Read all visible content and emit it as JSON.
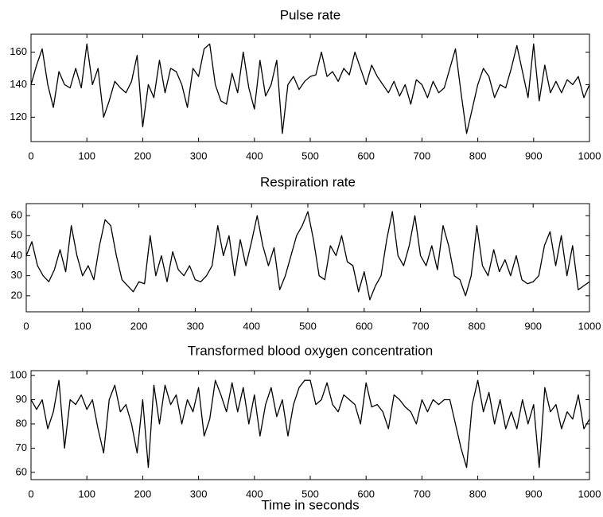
{
  "chart_data": [
    {
      "type": "line",
      "title": "Pulse rate",
      "color": "#000000",
      "x": [
        0,
        10,
        20,
        30,
        40,
        50,
        60,
        70,
        80,
        90,
        100,
        110,
        120,
        130,
        140,
        150,
        160,
        170,
        180,
        190,
        200,
        210,
        220,
        230,
        240,
        250,
        260,
        270,
        280,
        290,
        300,
        310,
        320,
        330,
        340,
        350,
        360,
        370,
        380,
        390,
        400,
        410,
        420,
        430,
        440,
        450,
        460,
        470,
        480,
        490,
        500,
        510,
        520,
        530,
        540,
        550,
        560,
        570,
        580,
        590,
        600,
        610,
        620,
        630,
        640,
        650,
        660,
        670,
        680,
        690,
        700,
        710,
        720,
        730,
        740,
        750,
        760,
        770,
        780,
        790,
        800,
        810,
        820,
        830,
        840,
        850,
        860,
        870,
        880,
        890,
        900,
        910,
        920,
        930,
        940,
        950,
        960,
        970,
        980,
        990,
        1000
      ],
      "values": [
        140,
        152,
        162,
        140,
        126,
        148,
        140,
        138,
        150,
        138,
        165,
        140,
        150,
        120,
        130,
        142,
        138,
        135,
        142,
        158,
        114,
        140,
        132,
        155,
        135,
        150,
        148,
        140,
        126,
        150,
        145,
        162,
        165,
        140,
        130,
        128,
        147,
        135,
        160,
        138,
        125,
        155,
        133,
        140,
        155,
        110,
        140,
        145,
        137,
        142,
        145,
        146,
        160,
        145,
        148,
        142,
        150,
        146,
        160,
        150,
        140,
        152,
        145,
        140,
        135,
        142,
        133,
        140,
        128,
        143,
        140,
        132,
        142,
        135,
        138,
        150,
        162,
        135,
        110,
        125,
        140,
        150,
        145,
        132,
        140,
        138,
        150,
        164,
        148,
        132,
        165,
        130,
        152,
        135,
        142,
        135,
        143,
        140,
        145,
        132,
        140
      ],
      "xlim": [
        0,
        1000
      ],
      "xticks": [
        0,
        100,
        200,
        300,
        400,
        500,
        600,
        700,
        800,
        900,
        1000
      ],
      "ylim": [
        105,
        171
      ],
      "yticks": [
        120,
        140,
        160
      ]
    },
    {
      "type": "line",
      "title": "Respiration rate",
      "color": "#000000",
      "x": [
        0,
        10,
        20,
        30,
        40,
        50,
        60,
        70,
        80,
        90,
        100,
        110,
        120,
        130,
        140,
        150,
        160,
        170,
        180,
        190,
        200,
        210,
        220,
        230,
        240,
        250,
        260,
        270,
        280,
        290,
        300,
        310,
        320,
        330,
        340,
        350,
        360,
        370,
        380,
        390,
        400,
        410,
        420,
        430,
        440,
        450,
        460,
        470,
        480,
        490,
        500,
        510,
        520,
        530,
        540,
        550,
        560,
        570,
        580,
        590,
        600,
        610,
        620,
        630,
        640,
        650,
        660,
        670,
        680,
        690,
        700,
        710,
        720,
        730,
        740,
        750,
        760,
        770,
        780,
        790,
        800,
        810,
        820,
        830,
        840,
        850,
        860,
        870,
        880,
        890,
        900,
        910,
        920,
        930,
        940,
        950,
        960,
        970,
        980,
        990,
        1000
      ],
      "values": [
        40,
        47,
        35,
        30,
        27,
        33,
        43,
        32,
        55,
        40,
        30,
        35,
        28,
        45,
        58,
        55,
        40,
        28,
        25,
        22,
        27,
        26,
        50,
        30,
        40,
        27,
        42,
        33,
        30,
        35,
        28,
        27,
        30,
        35,
        55,
        40,
        50,
        30,
        48,
        35,
        47,
        60,
        45,
        35,
        44,
        23,
        30,
        40,
        50,
        55,
        62,
        48,
        30,
        28,
        45,
        40,
        50,
        37,
        35,
        22,
        32,
        18,
        25,
        30,
        48,
        62,
        40,
        35,
        45,
        60,
        40,
        35,
        45,
        33,
        55,
        45,
        30,
        28,
        20,
        30,
        55,
        35,
        30,
        43,
        32,
        38,
        30,
        40,
        28,
        26,
        27,
        30,
        45,
        52,
        35,
        50,
        30,
        45,
        23,
        25,
        27
      ],
      "xlim": [
        0,
        1000
      ],
      "xticks": [
        0,
        100,
        200,
        300,
        400,
        500,
        600,
        700,
        800,
        900,
        1000
      ],
      "ylim": [
        12,
        66
      ],
      "yticks": [
        20,
        30,
        40,
        50,
        60
      ]
    },
    {
      "type": "line",
      "title": "Transformed blood oxygen concentration",
      "xlabel": "Time in seconds",
      "color": "#000000",
      "x": [
        0,
        10,
        20,
        30,
        40,
        50,
        60,
        70,
        80,
        90,
        100,
        110,
        120,
        130,
        140,
        150,
        160,
        170,
        180,
        190,
        200,
        210,
        220,
        230,
        240,
        250,
        260,
        270,
        280,
        290,
        300,
        310,
        320,
        330,
        340,
        350,
        360,
        370,
        380,
        390,
        400,
        410,
        420,
        430,
        440,
        450,
        460,
        470,
        480,
        490,
        500,
        510,
        520,
        530,
        540,
        550,
        560,
        570,
        580,
        590,
        600,
        610,
        620,
        630,
        640,
        650,
        660,
        670,
        680,
        690,
        700,
        710,
        720,
        730,
        740,
        750,
        760,
        770,
        780,
        790,
        800,
        810,
        820,
        830,
        840,
        850,
        860,
        870,
        880,
        890,
        900,
        910,
        920,
        930,
        940,
        950,
        960,
        970,
        980,
        990,
        1000
      ],
      "values": [
        90,
        86,
        90,
        78,
        85,
        98,
        70,
        90,
        88,
        92,
        86,
        90,
        78,
        68,
        90,
        96,
        85,
        88,
        80,
        68,
        90,
        62,
        96,
        80,
        96,
        88,
        92,
        80,
        90,
        85,
        95,
        75,
        82,
        98,
        92,
        85,
        97,
        85,
        95,
        80,
        92,
        75,
        88,
        95,
        83,
        90,
        75,
        88,
        95,
        98,
        98,
        88,
        90,
        97,
        88,
        85,
        92,
        90,
        88,
        80,
        97,
        87,
        88,
        85,
        78,
        92,
        90,
        87,
        85,
        80,
        90,
        85,
        90,
        88,
        90,
        90,
        80,
        70,
        62,
        88,
        98,
        85,
        93,
        80,
        90,
        78,
        85,
        78,
        90,
        80,
        88,
        62,
        95,
        85,
        88,
        78,
        85,
        82,
        92,
        78,
        82
      ],
      "xlim": [
        0,
        1000
      ],
      "xticks": [
        0,
        100,
        200,
        300,
        400,
        500,
        600,
        700,
        800,
        900,
        1000
      ],
      "ylim": [
        57,
        102
      ],
      "yticks": [
        60,
        70,
        80,
        90,
        100
      ]
    }
  ]
}
